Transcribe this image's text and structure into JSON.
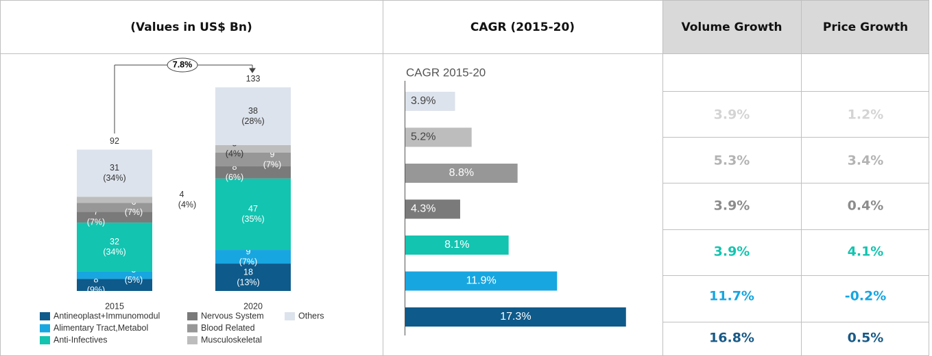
{
  "table": {
    "headers": [
      "(Values in US$ Bn)",
      "CAGR (2015-20)",
      "Volume Growth",
      "Price Growth"
    ],
    "rows": [
      [
        "3.9%",
        "1.2%"
      ],
      [
        "5.3%",
        "3.4%"
      ],
      [
        "3.9%",
        "0.4%"
      ],
      [
        "3.9%",
        "4.1%"
      ],
      [
        "11.7%",
        "-0.2%"
      ],
      [
        "16.8%",
        "0.5%"
      ]
    ],
    "row_colors": [
      "#d4d4d4",
      "#b3b3b3",
      "#8c8c8c",
      "#13c4b0",
      "#17a6e0",
      "#185a87"
    ]
  },
  "chart_data": [
    {
      "type": "stacked_bar",
      "categories": [
        "2015",
        "2020"
      ],
      "totals": [
        92,
        133
      ],
      "annotation": "7.8%",
      "series": [
        {
          "name": "Antineoplast+Immunomodul",
          "color": "#0e5a8a",
          "values": [
            8,
            18
          ],
          "share_labels": [
            "(9%)",
            "(13%)"
          ]
        },
        {
          "name": "Alimentary Tract,Metabol",
          "color": "#17a6e0",
          "values": [
            5,
            9
          ],
          "share_labels": [
            "(5%)",
            "(7%)"
          ]
        },
        {
          "name": "Anti-Infectives",
          "color": "#13c4b0",
          "values": [
            32,
            47
          ],
          "share_labels": [
            "(34%)",
            "(35%)"
          ]
        },
        {
          "name": "Nervous System",
          "color": "#7a7a7a",
          "values": [
            7,
            8
          ],
          "share_labels": [
            "(7%)",
            "(6%)"
          ]
        },
        {
          "name": "Blood Related",
          "color": "#979797",
          "values": [
            6,
            9
          ],
          "share_labels": [
            "(7%)",
            "(7%)"
          ]
        },
        {
          "name": "Musculoskeletal",
          "color": "#bdbdbd",
          "values": [
            4,
            5
          ],
          "share_labels": [
            "(4%)",
            "(4%)"
          ]
        },
        {
          "name": "Others",
          "color": "#dde3ec",
          "values": [
            31,
            38
          ],
          "share_labels": [
            "(34%)",
            "(28%)"
          ]
        }
      ]
    },
    {
      "type": "hbar",
      "title": "CAGR 2015-20",
      "values": [
        3.9,
        5.2,
        8.8,
        4.3,
        8.1,
        11.9,
        17.3
      ],
      "value_labels": [
        "3.9%",
        "5.2%",
        "8.8%",
        "4.3%",
        "8.1%",
        "11.9%",
        "17.3%"
      ],
      "colors": [
        "#dde3ec",
        "#bdbdbd",
        "#979797",
        "#7a7a7a",
        "#13c4b0",
        "#17a6e0",
        "#0e5a8a"
      ]
    }
  ]
}
